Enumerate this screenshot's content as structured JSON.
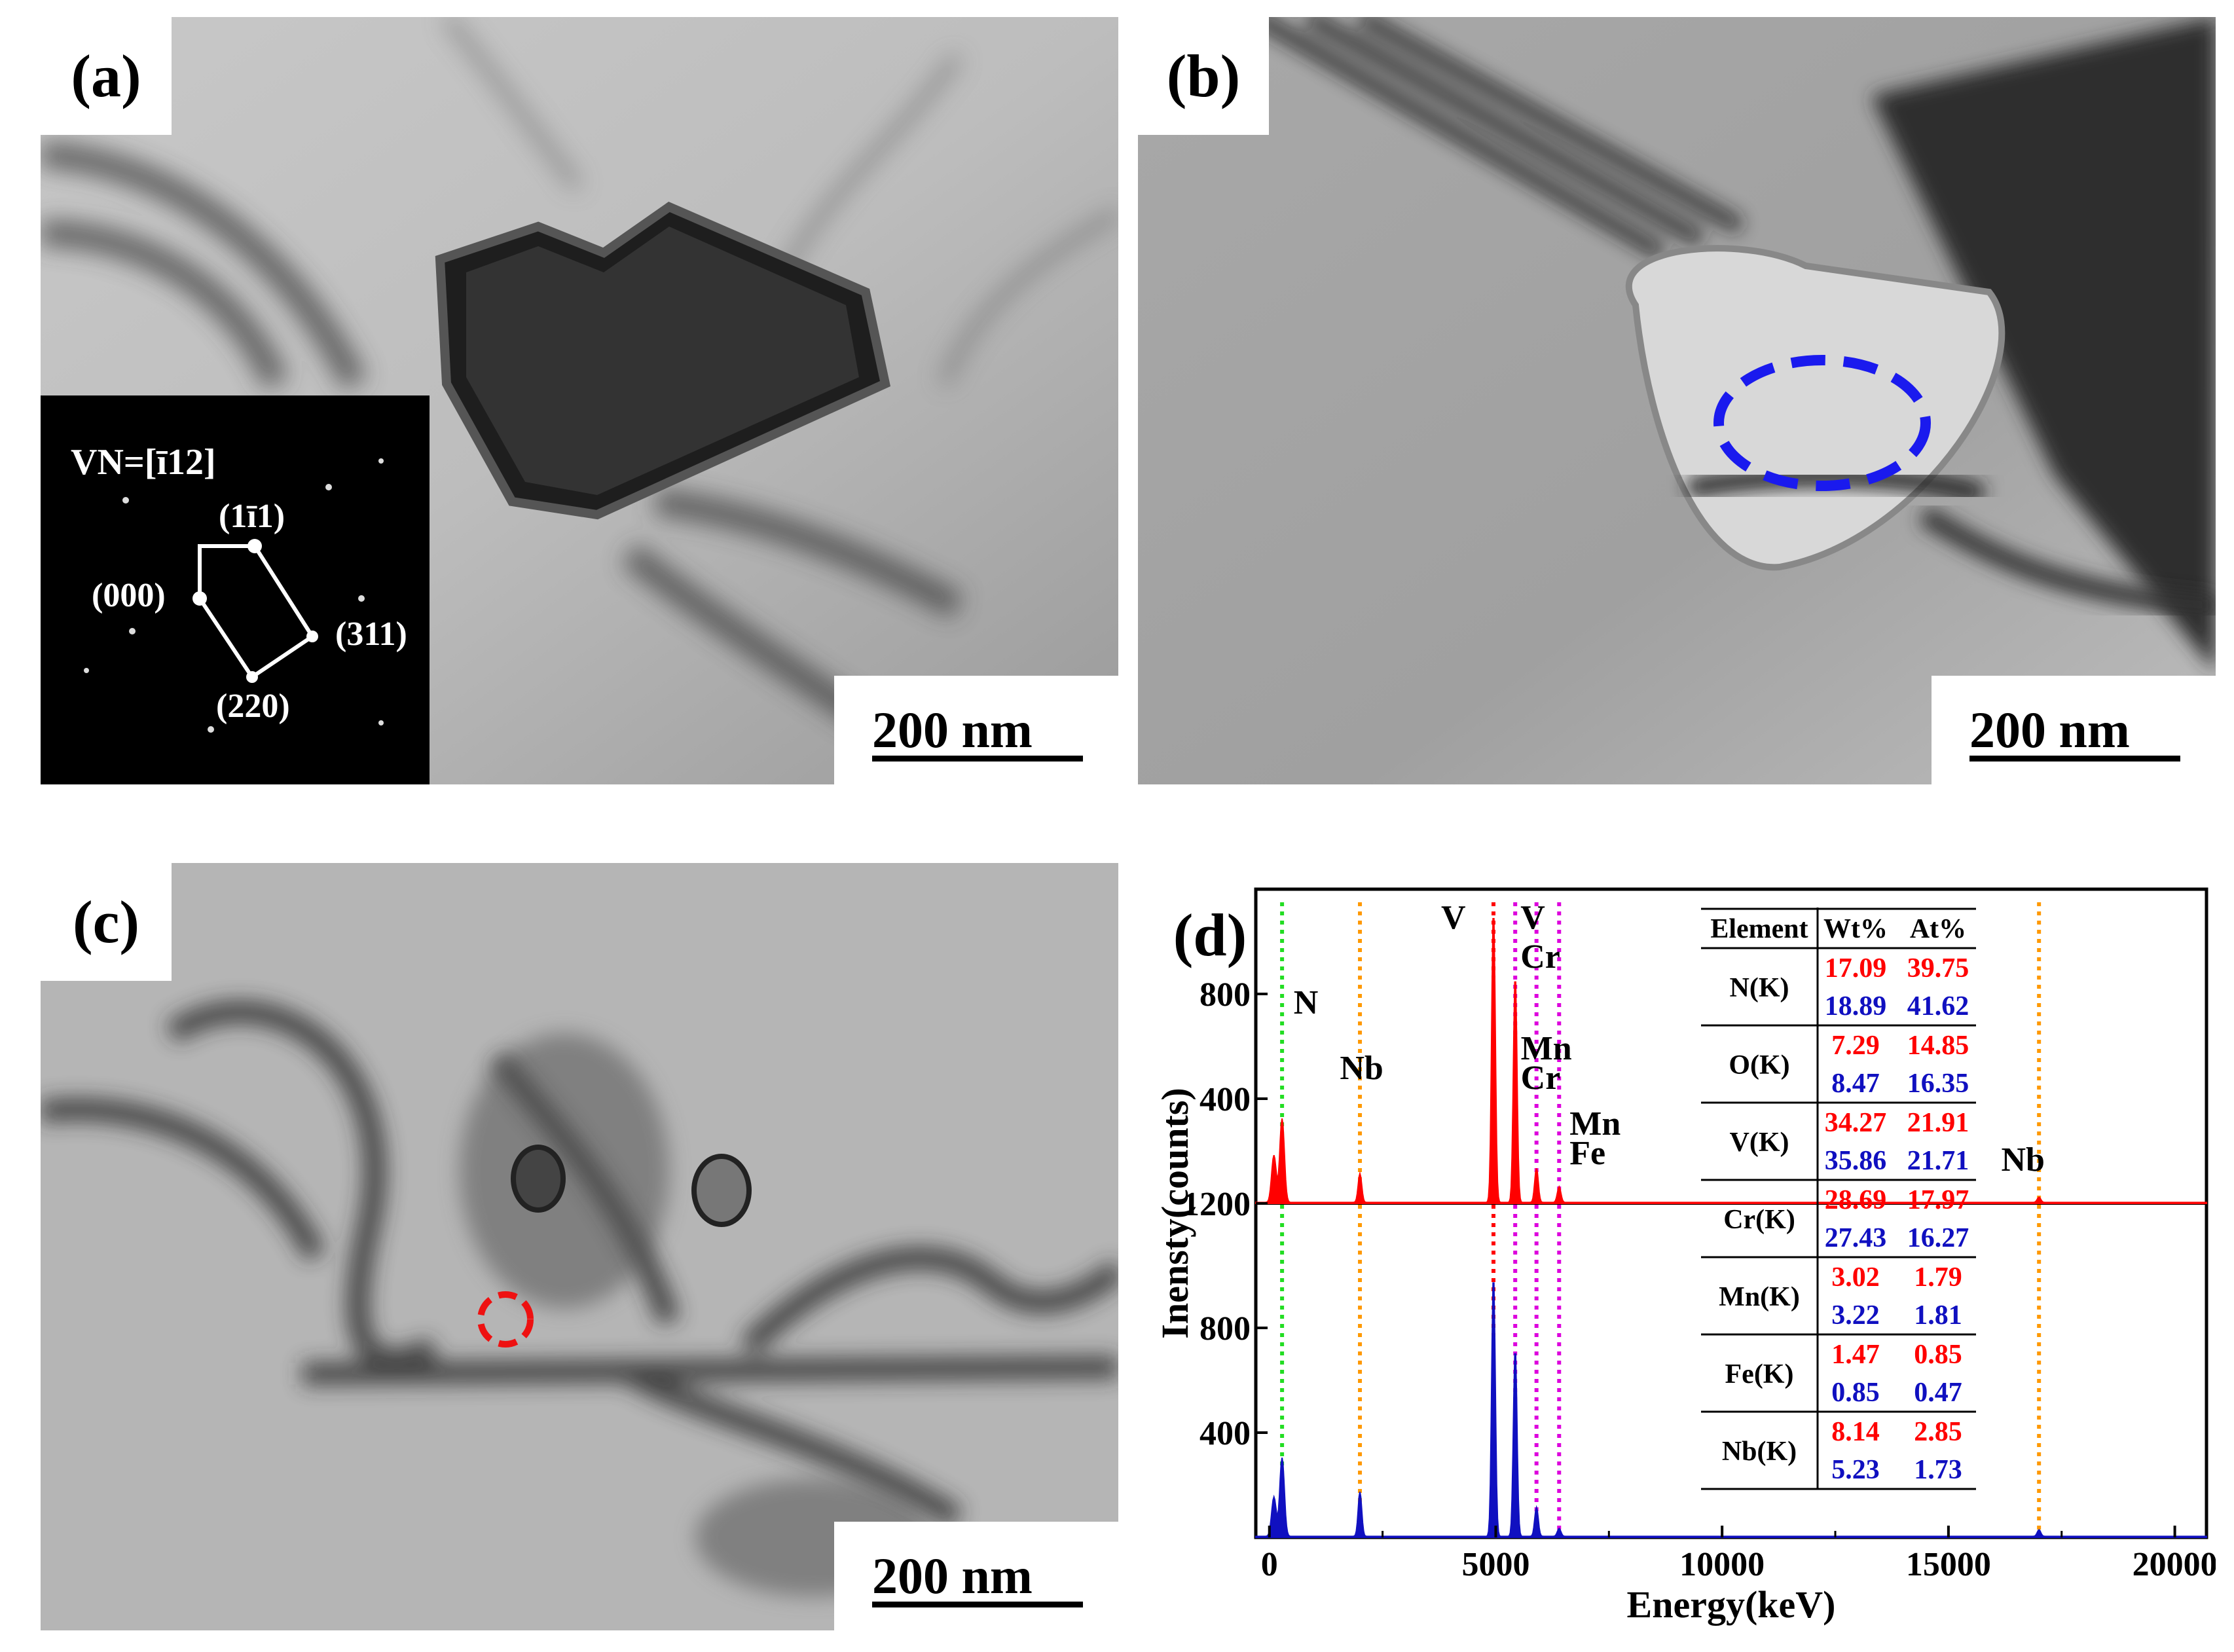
{
  "panels": {
    "a": {
      "label": "(a)",
      "scale_bar": "200 nm",
      "inset": {
        "zone_axis": "VN=[ī12]",
        "spots": [
          "(1ī1)",
          "(000)",
          "(311)",
          "(220)"
        ]
      }
    },
    "b": {
      "label": "(b)",
      "scale_bar": "200 nm"
    },
    "c": {
      "label": "(c)",
      "scale_bar": "200 nm"
    },
    "d": {
      "label": "(d)"
    }
  },
  "colors": {
    "spectrum1": "#ff0000",
    "spectrum2": "#1010c0",
    "N_line": "#22dd22",
    "Nb_line": "#ff9900",
    "metal_line": "#dd00dd",
    "V_line": "#ff0000",
    "ellipse_b": "#1a1aee",
    "circle_c": "#ee1111"
  },
  "chart_data": {
    "type": "area",
    "xlabel": "Energy(keV)",
    "ylabel": "Inensty(counts)",
    "xlim": [
      -300,
      20700
    ],
    "x_ticks": [
      "0",
      "5000",
      "10000",
      "15000",
      "20000"
    ],
    "y_ticks_top": [
      "400",
      "800",
      "1200"
    ],
    "y_ticks_bottom": [
      "400",
      "800"
    ],
    "peak_labels_top": [
      {
        "text": "N",
        "x": 390
      },
      {
        "text": "Nb",
        "x": 1990
      },
      {
        "text": "V",
        "x": 4950
      },
      {
        "text": "V",
        "x": 5430
      },
      {
        "text": "Cr",
        "x": 5430
      },
      {
        "text": "Mn",
        "x": 5900
      },
      {
        "text": "Cr",
        "x": 5900
      },
      {
        "text": "Mn",
        "x": 6400
      },
      {
        "text": "Fe",
        "x": 6400
      },
      {
        "text": "Nb",
        "x": 16600
      }
    ],
    "series": [
      {
        "color": "#ff0000",
        "peaks": [
          {
            "x": 100,
            "y": 180
          },
          {
            "x": 280,
            "y": 320
          },
          {
            "x": 2000,
            "y": 110
          },
          {
            "x": 4950,
            "y": 1120
          },
          {
            "x": 5430,
            "y": 870
          },
          {
            "x": 5900,
            "y": 130
          },
          {
            "x": 6400,
            "y": 60
          },
          {
            "x": 17000,
            "y": 20
          }
        ]
      },
      {
        "color": "#1010c0",
        "peaks": [
          {
            "x": 100,
            "y": 150
          },
          {
            "x": 280,
            "y": 300
          },
          {
            "x": 2000,
            "y": 170
          },
          {
            "x": 4950,
            "y": 1000
          },
          {
            "x": 5430,
            "y": 720
          },
          {
            "x": 5900,
            "y": 110
          },
          {
            "x": 6400,
            "y": 30
          },
          {
            "x": 17000,
            "y": 25
          }
        ]
      }
    ],
    "table": {
      "headers": [
        "Element",
        "Wt%",
        "At%"
      ],
      "rows": [
        {
          "element": "N(K)",
          "r": [
            "17.09",
            "39.75"
          ],
          "b": [
            "18.89",
            "41.62"
          ]
        },
        {
          "element": "O(K)",
          "r": [
            "7.29",
            "14.85"
          ],
          "b": [
            "8.47",
            "16.35"
          ]
        },
        {
          "element": "V(K)",
          "r": [
            "34.27",
            "21.91"
          ],
          "b": [
            "35.86",
            "21.71"
          ]
        },
        {
          "element": "Cr(K)",
          "r": [
            "28.69",
            "17.97"
          ],
          "b": [
            "27.43",
            "16.27"
          ]
        },
        {
          "element": "Mn(K)",
          "r": [
            "3.02",
            "1.79"
          ],
          "b": [
            "3.22",
            "1.81"
          ]
        },
        {
          "element": "Fe(K)",
          "r": [
            "1.47",
            "0.85"
          ],
          "b": [
            "0.85",
            "0.47"
          ]
        },
        {
          "element": "Nb(K)",
          "r": [
            "8.14",
            "2.85"
          ],
          "b": [
            "5.23",
            "1.73"
          ]
        }
      ]
    }
  }
}
